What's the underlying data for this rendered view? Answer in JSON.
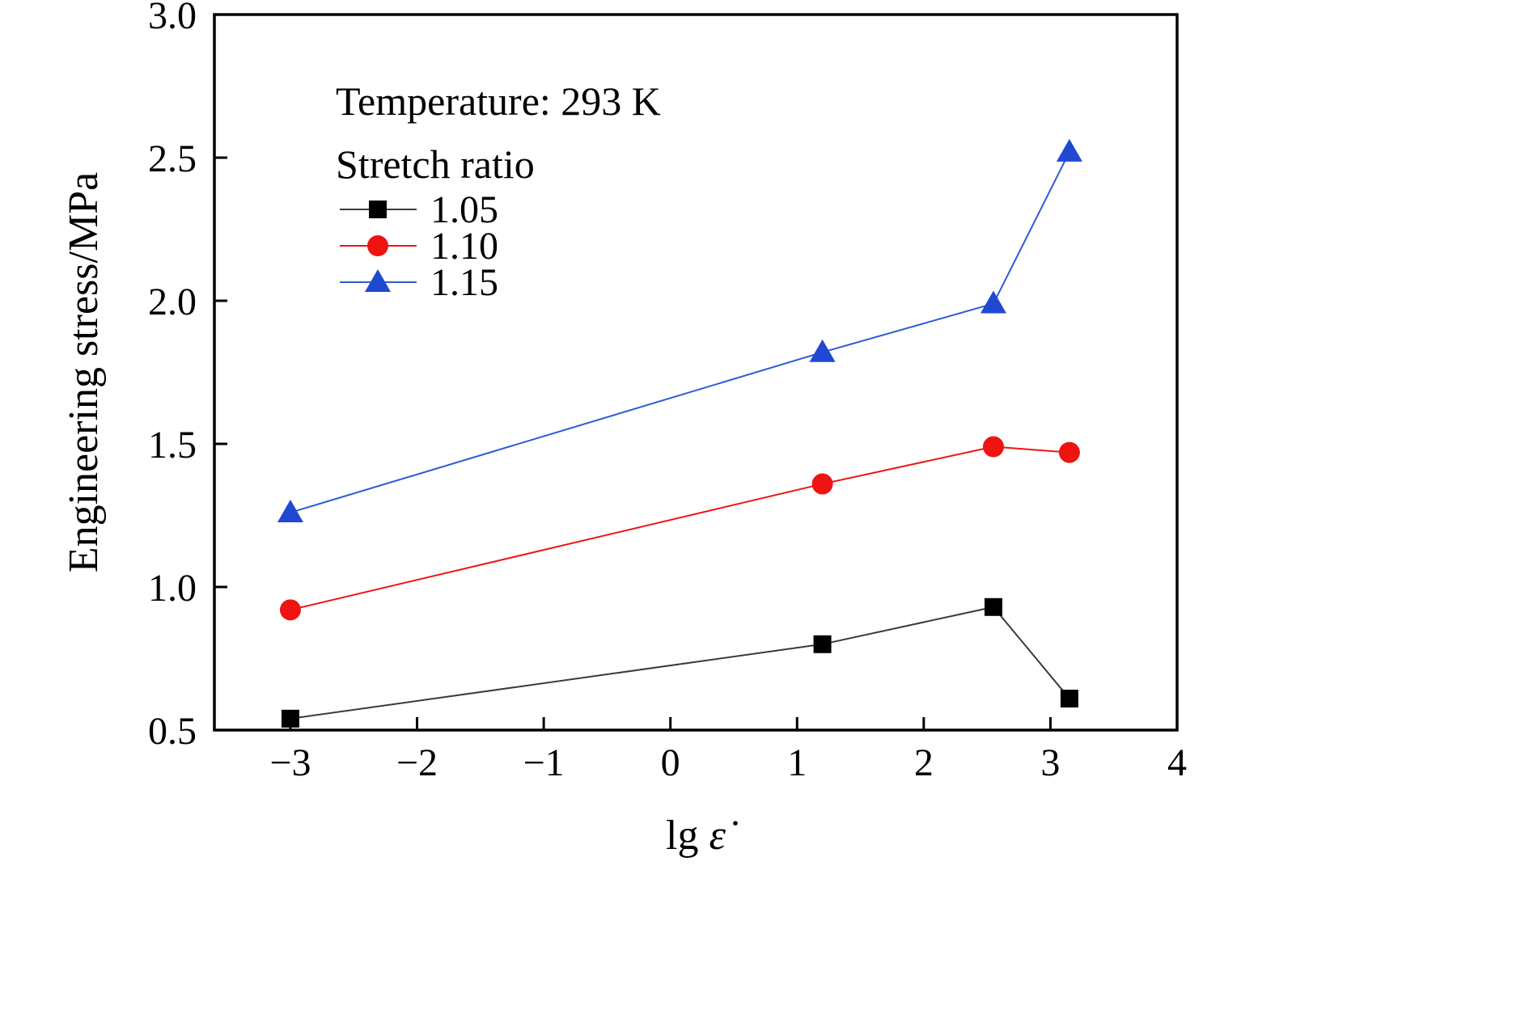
{
  "chart_data": {
    "type": "line",
    "title": "",
    "xlabel": "lg ε̇",
    "ylabel": "Engineering stress/MPa",
    "xlim": [
      -3.6,
      4
    ],
    "ylim": [
      0.5,
      3.0
    ],
    "xticks": [
      -3,
      -2,
      -1,
      0,
      1,
      2,
      3,
      4
    ],
    "xtick_labels": [
      "−3",
      "−2",
      "−1",
      "0",
      "1",
      "2",
      "3",
      "4"
    ],
    "yticks": [
      0.5,
      1.0,
      1.5,
      2.0,
      2.5,
      3.0
    ],
    "ytick_labels": [
      "0.5",
      "1.0",
      "1.5",
      "2.0",
      "2.5",
      "3.0"
    ],
    "grid": false,
    "legend_position": "upper-left",
    "annotations": [
      "Temperature: 293 K",
      "Stretch ratio"
    ],
    "x": [
      -3,
      1.2,
      2.55,
      3.15
    ],
    "series": [
      {
        "name": "1.05",
        "marker": "square",
        "color": "#000000",
        "line_color": "#3a3a3a",
        "values": [
          0.54,
          0.8,
          0.93,
          0.61
        ]
      },
      {
        "name": "1.10",
        "marker": "circle",
        "color": "#ee1411",
        "line_color": "#ee1411",
        "values": [
          0.92,
          1.36,
          1.49,
          1.47
        ]
      },
      {
        "name": "1.15",
        "marker": "triangle",
        "color": "#2148d0",
        "line_color": "#2f5ad6",
        "values": [
          1.26,
          1.82,
          1.99,
          2.52
        ]
      }
    ]
  }
}
